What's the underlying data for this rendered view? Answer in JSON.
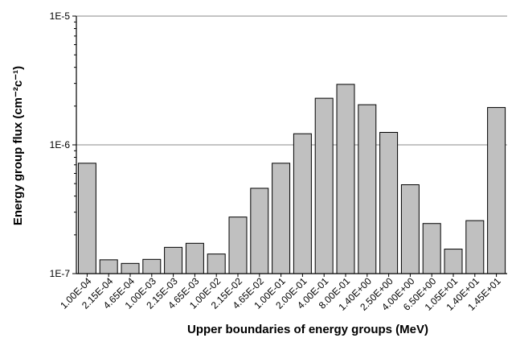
{
  "chart_data": {
    "type": "bar",
    "ylabel": "Energy group flux (cm⁻²c⁻¹)",
    "xlabel": "Upper boundaries of energy groups (MeV)",
    "y_scale": "log",
    "ylim": [
      1e-07,
      1e-05
    ],
    "y_ticks": [
      {
        "value": 1e-07,
        "label": "1E-7"
      },
      {
        "value": 1e-06,
        "label": "1E-6"
      },
      {
        "value": 1e-05,
        "label": "1E-5"
      }
    ],
    "grid": true,
    "categories": [
      "1.00E-04",
      "2.15E-04",
      "4.65E-04",
      "1.00E-03",
      "2.15E-03",
      "4.65E-03",
      "1.00E-02",
      "2.15E-02",
      "4.65E-02",
      "1.00E-01",
      "2.00E-01",
      "4.00E-01",
      "8.00E-01",
      "1.40E+00",
      "2.50E+00",
      "4.00E+00",
      "6.50E+00",
      "1.05E+01",
      "1.40E+01",
      "1.45E+01"
    ],
    "values": [
      7.2e-07,
      1.28e-07,
      1.2e-07,
      1.29e-07,
      1.6e-07,
      1.72e-07,
      1.42e-07,
      2.75e-07,
      4.6e-07,
      7.2e-07,
      1.22e-06,
      2.3e-06,
      2.95e-06,
      2.05e-06,
      1.25e-06,
      4.9e-07,
      2.45e-07,
      1.55e-07,
      2.58e-07,
      1.95e-06
    ]
  }
}
